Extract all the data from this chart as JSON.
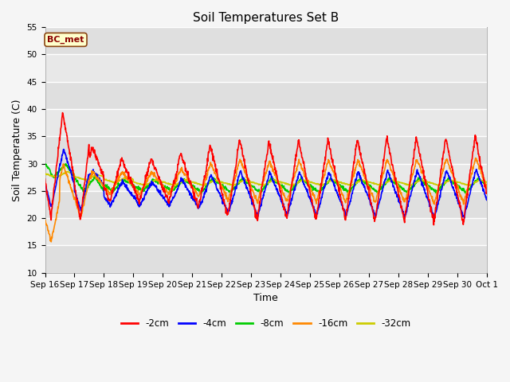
{
  "title": "Soil Temperatures Set B",
  "xlabel": "Time",
  "ylabel": "Soil Temperature (C)",
  "ylim": [
    10,
    55
  ],
  "yticks": [
    10,
    15,
    20,
    25,
    30,
    35,
    40,
    45,
    50,
    55
  ],
  "series_colors": {
    "-2cm": "#ff0000",
    "-4cm": "#0000ff",
    "-8cm": "#00cc00",
    "-16cm": "#ff8800",
    "-32cm": "#cccc00"
  },
  "legend_label": "BC_met",
  "plot_bg_color": "#e8e8e8",
  "fig_bg_color": "#f5f5f5",
  "linewidth": 1.2,
  "x_tick_labels": [
    "Sep 16",
    "Sep 17",
    "Sep 18",
    "Sep 19",
    "Sep 20",
    "Sep 21",
    "Sep 22",
    "Sep 23",
    "Sep 24",
    "Sep 25",
    "Sep 26",
    "Sep 27",
    "Sep 28",
    "Sep 29",
    "Sep 30",
    "Oct 1"
  ]
}
